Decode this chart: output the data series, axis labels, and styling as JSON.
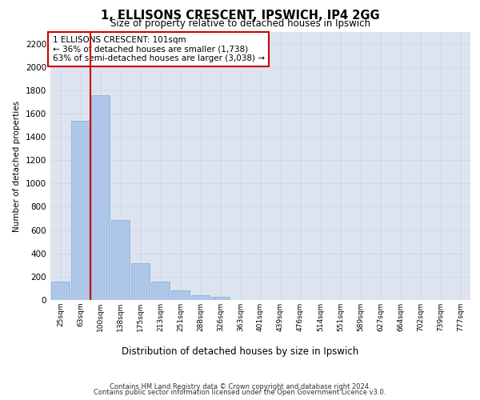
{
  "title1": "1, ELLISONS CRESCENT, IPSWICH, IP4 2GG",
  "title2": "Size of property relative to detached houses in Ipswich",
  "xlabel": "Distribution of detached houses by size in Ipswich",
  "ylabel": "Number of detached properties",
  "categories": [
    "25sqm",
    "63sqm",
    "100sqm",
    "138sqm",
    "175sqm",
    "213sqm",
    "251sqm",
    "288sqm",
    "326sqm",
    "363sqm",
    "401sqm",
    "439sqm",
    "476sqm",
    "514sqm",
    "551sqm",
    "589sqm",
    "627sqm",
    "664sqm",
    "702sqm",
    "739sqm",
    "777sqm"
  ],
  "values": [
    155,
    1540,
    1760,
    690,
    315,
    160,
    80,
    42,
    25,
    0,
    0,
    0,
    0,
    0,
    0,
    0,
    0,
    0,
    0,
    0,
    0
  ],
  "bar_color": "#aec6e8",
  "bar_edge_color": "#7bafd4",
  "annotation_text": "1 ELLISONS CRESCENT: 101sqm\n← 36% of detached houses are smaller (1,738)\n63% of semi-detached houses are larger (3,038) →",
  "annotation_box_color": "#ffffff",
  "annotation_box_edge": "#cc0000",
  "vline_color": "#cc0000",
  "grid_color": "#d0d8e8",
  "background_color": "#dde4f0",
  "footer1": "Contains HM Land Registry data © Crown copyright and database right 2024.",
  "footer2": "Contains public sector information licensed under the Open Government Licence v3.0.",
  "ylim": [
    0,
    2300
  ],
  "yticks": [
    0,
    200,
    400,
    600,
    800,
    1000,
    1200,
    1400,
    1600,
    1800,
    2000,
    2200
  ]
}
